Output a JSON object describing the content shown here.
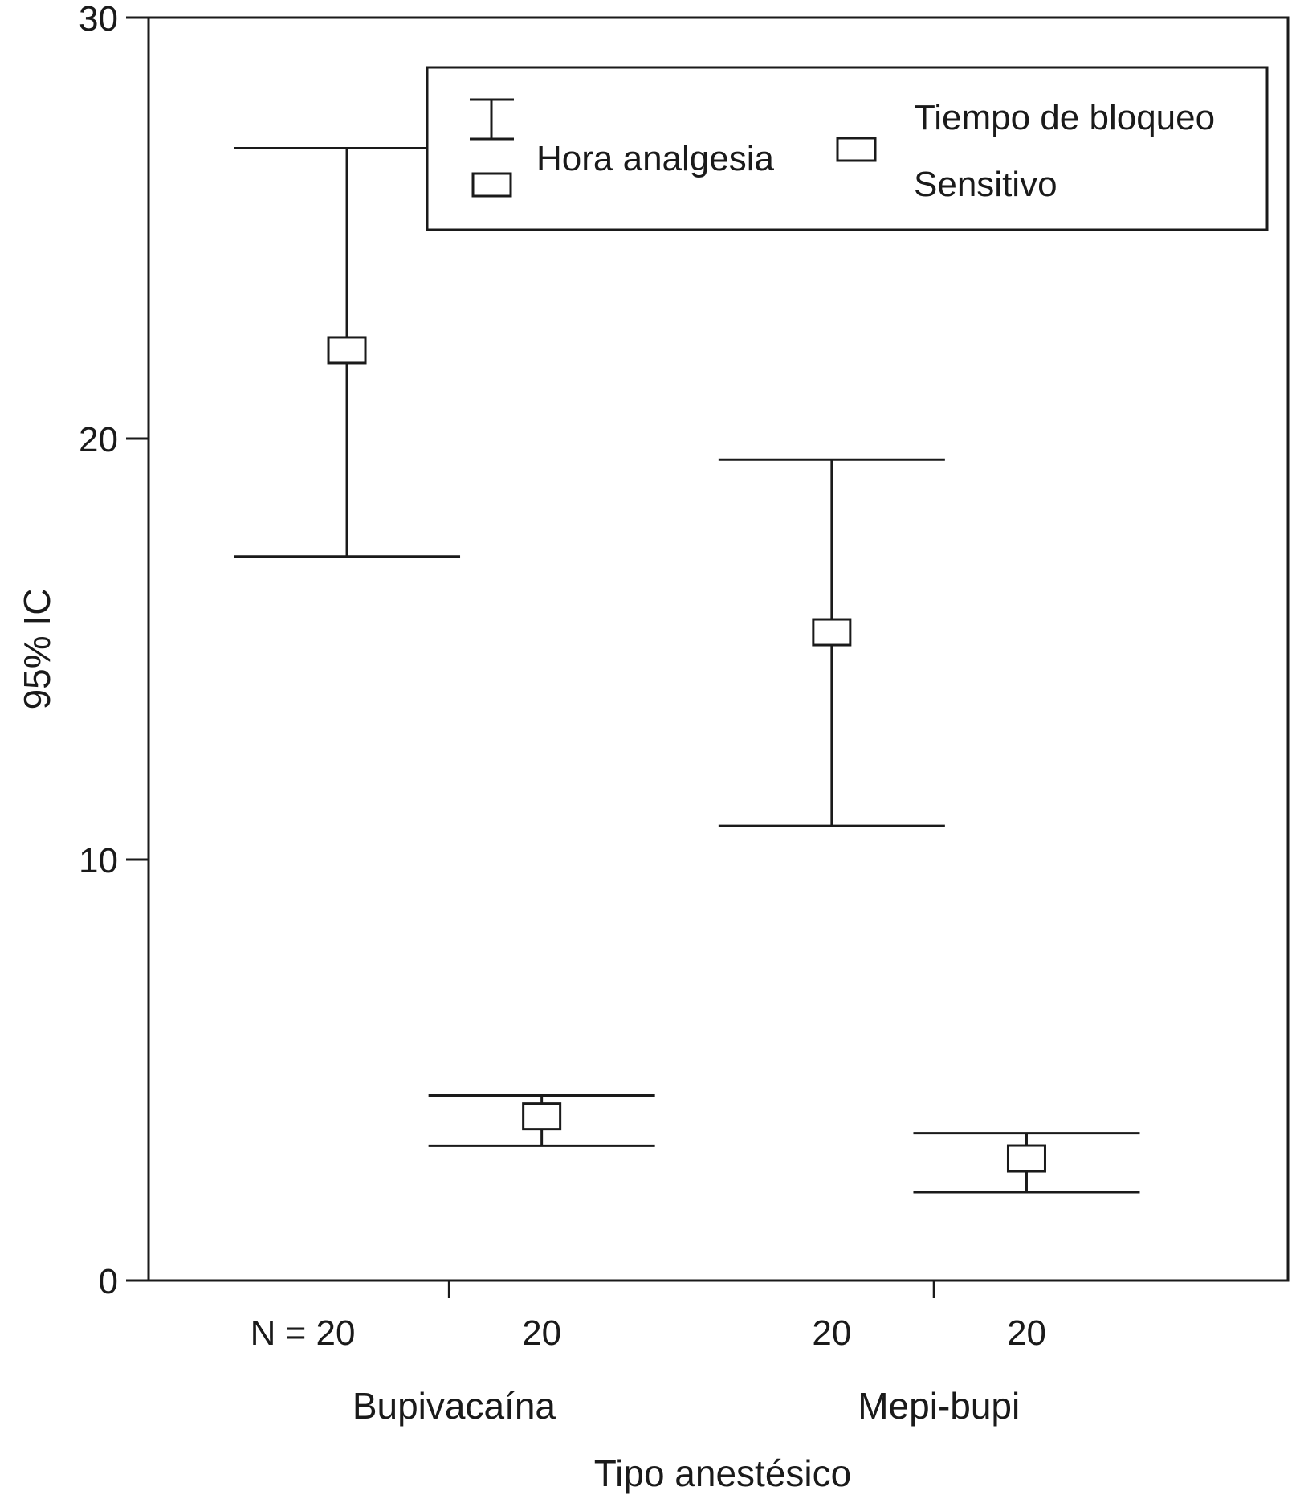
{
  "chart_data": {
    "type": "errorbar",
    "title": "",
    "xlabel": "Tipo anestésico",
    "ylabel": "95% IC",
    "ylim": [
      0,
      30
    ],
    "yticks": [
      "0",
      "10",
      "20",
      "30"
    ],
    "groups": [
      "Bupivacaína",
      "Mepi-bupi"
    ],
    "n_labels": [
      "N = 20",
      "20",
      "20",
      "20"
    ],
    "legend": {
      "placement": "top-right",
      "entries": [
        {
          "lines": [
            "Hora analgesia"
          ]
        },
        {
          "lines": [
            "Tiempo de bloqueo",
            "Sensitivo"
          ]
        }
      ]
    },
    "series": [
      {
        "name": "Hora analgesia",
        "points": [
          {
            "group": "Bupivacaína",
            "mean": 22.1,
            "lower": 17.2,
            "upper": 26.9
          },
          {
            "group": "Mepi-bupi",
            "mean": 15.4,
            "lower": 10.8,
            "upper": 19.5
          }
        ]
      },
      {
        "name": "Tiempo de bloqueo Sensitivo",
        "points": [
          {
            "group": "Bupivacaína",
            "mean": 3.9,
            "lower": 3.2,
            "upper": 4.4
          },
          {
            "group": "Mepi-bupi",
            "mean": 2.9,
            "lower": 2.1,
            "upper": 3.5
          }
        ]
      }
    ],
    "grid": false
  },
  "colors": {
    "ink": "#1a1a1a",
    "background": "#ffffff"
  }
}
